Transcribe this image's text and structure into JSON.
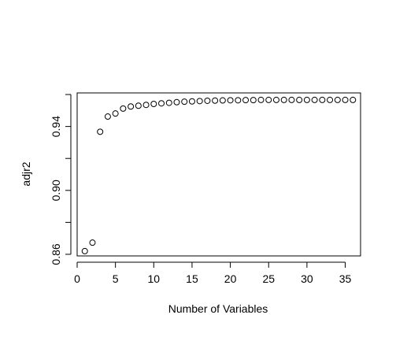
{
  "chart_data": {
    "type": "scatter",
    "title": "",
    "xlabel": "Number of Variables",
    "ylabel": "adjr2",
    "xlim": [
      0,
      37
    ],
    "ylim": [
      0.859,
      0.961
    ],
    "x_ticks": [
      0,
      5,
      10,
      15,
      20,
      25,
      30,
      35
    ],
    "y_ticks": [
      0.86,
      0.9,
      0.94
    ],
    "x_tick_labels": [
      "0",
      "5",
      "10",
      "15",
      "20",
      "25",
      "30",
      "35"
    ],
    "y_tick_labels": [
      "0.86",
      "0.90",
      "0.94"
    ],
    "grid": false,
    "marker": "open-circle",
    "series": [
      {
        "x": [
          1,
          2,
          3,
          4,
          5,
          6,
          7,
          8,
          9,
          10,
          11,
          12,
          13,
          14,
          15,
          16,
          17,
          18,
          19,
          20,
          21,
          22,
          23,
          24,
          25,
          26,
          27,
          28,
          29,
          30,
          31,
          32,
          33,
          34,
          35,
          36
        ],
        "y": [
          0.862,
          0.8673,
          0.9367,
          0.9462,
          0.9481,
          0.9512,
          0.9525,
          0.953,
          0.9535,
          0.9541,
          0.9545,
          0.9548,
          0.9552,
          0.9555,
          0.9557,
          0.9559,
          0.9561,
          0.9562,
          0.9563,
          0.9564,
          0.9564,
          0.9565,
          0.9565,
          0.9566,
          0.9566,
          0.9566,
          0.9566,
          0.9566,
          0.9566,
          0.9566,
          0.9566,
          0.9566,
          0.9566,
          0.9566,
          0.9566,
          0.9566
        ]
      }
    ]
  }
}
